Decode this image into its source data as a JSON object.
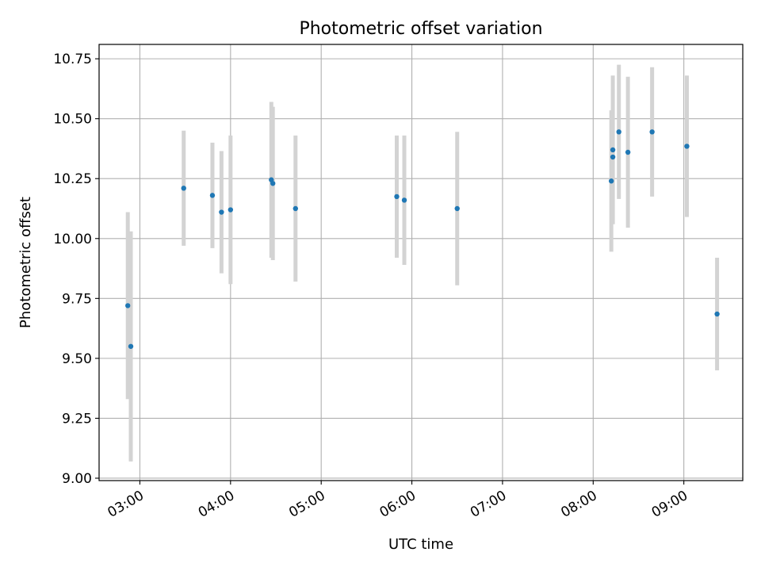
{
  "chart_data": {
    "type": "scatter",
    "title": "Photometric offset variation",
    "xlabel": "UTC time",
    "ylabel": "Photometric offset",
    "x_type": "time",
    "xlim": [
      "02:33",
      "09:39"
    ],
    "ylim": [
      8.99,
      10.81
    ],
    "x_ticks": [
      "03:00",
      "04:00",
      "05:00",
      "06:00",
      "07:00",
      "08:00",
      "09:00"
    ],
    "y_ticks": [
      "9.00",
      "9.25",
      "9.50",
      "9.75",
      "10.00",
      "10.25",
      "10.50",
      "10.75"
    ],
    "grid": true,
    "legend": "none",
    "colors": {
      "point": "#1f77b4",
      "errorbar": "#d3d3d3",
      "grid": "#b0b0b0",
      "axes": "#000000"
    },
    "points": [
      {
        "x": "02:52",
        "y": 9.72,
        "yerr": 0.39
      },
      {
        "x": "02:54",
        "y": 9.55,
        "yerr": 0.48
      },
      {
        "x": "03:29",
        "y": 10.21,
        "yerr": 0.24
      },
      {
        "x": "03:48",
        "y": 10.18,
        "yerr": 0.22
      },
      {
        "x": "03:54",
        "y": 10.11,
        "yerr": 0.255
      },
      {
        "x": "04:00",
        "y": 10.12,
        "yerr": 0.31
      },
      {
        "x": "04:27",
        "y": 10.245,
        "yerr": 0.325
      },
      {
        "x": "04:28",
        "y": 10.23,
        "yerr": 0.32
      },
      {
        "x": "04:43",
        "y": 10.125,
        "yerr": 0.305
      },
      {
        "x": "05:50",
        "y": 10.175,
        "yerr": 0.255
      },
      {
        "x": "05:55",
        "y": 10.16,
        "yerr": 0.27
      },
      {
        "x": "06:30",
        "y": 10.125,
        "yerr": 0.32
      },
      {
        "x": "08:12",
        "y": 10.24,
        "yerr": 0.295
      },
      {
        "x": "08:13",
        "y": 10.34,
        "yerr": 0.28
      },
      {
        "x": "08:13",
        "y": 10.37,
        "yerr": 0.31
      },
      {
        "x": "08:17",
        "y": 10.445,
        "yerr": 0.28
      },
      {
        "x": "08:23",
        "y": 10.36,
        "yerr": 0.315
      },
      {
        "x": "08:39",
        "y": 10.445,
        "yerr": 0.27
      },
      {
        "x": "09:02",
        "y": 10.385,
        "yerr": 0.295
      },
      {
        "x": "09:22",
        "y": 9.685,
        "yerr": 0.235
      }
    ]
  }
}
